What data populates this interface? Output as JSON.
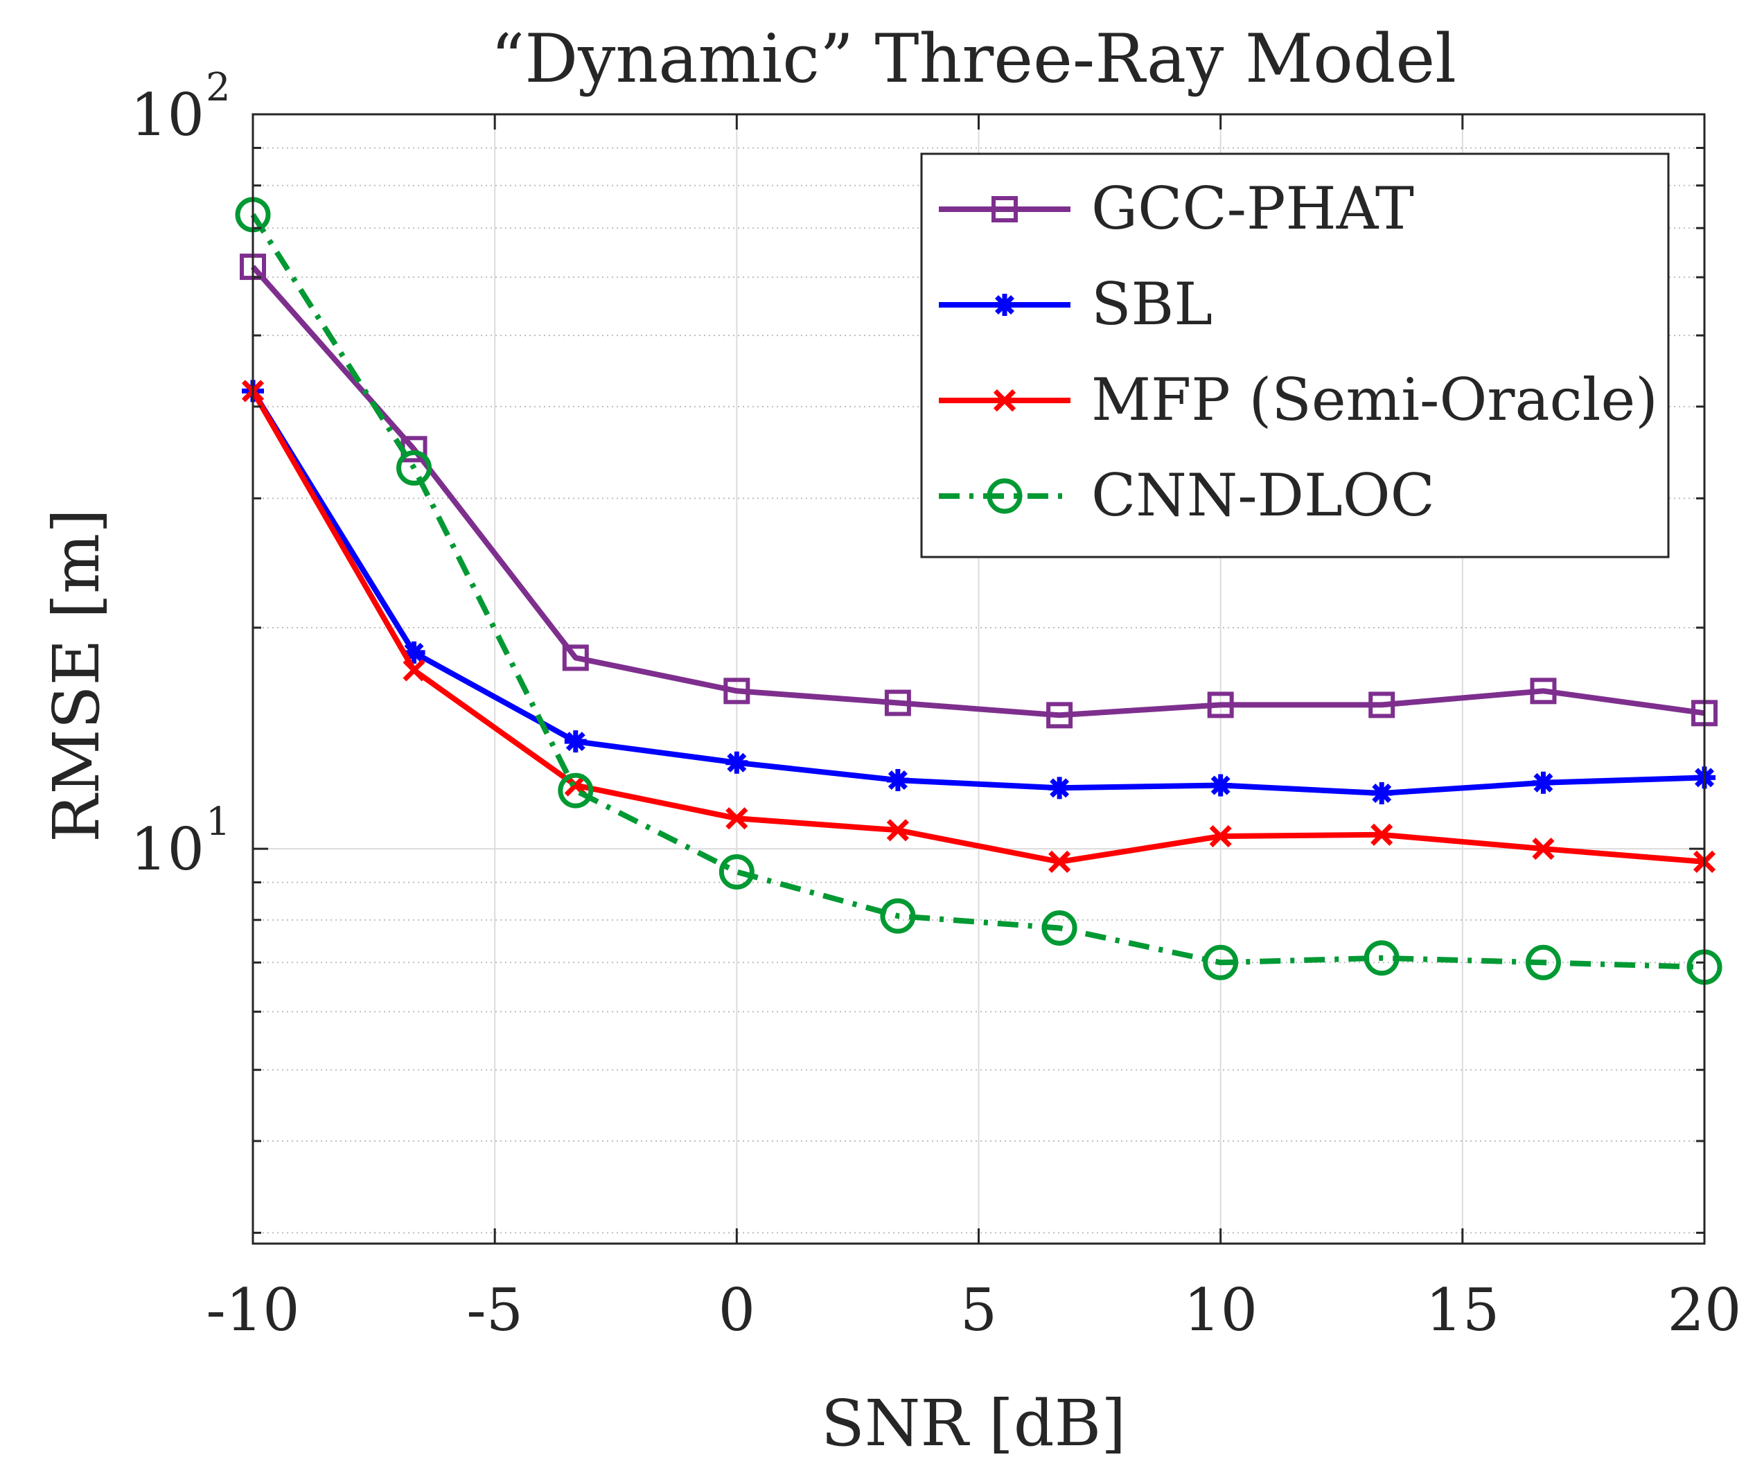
{
  "chart_data": {
    "type": "line",
    "title": "“Dynamic” Three-Ray Model",
    "xlabel": "SNR [dB]",
    "ylabel": "RMSE [m]",
    "xlim": [
      -10,
      20
    ],
    "ylim": [
      2.9,
      100
    ],
    "yscale": "log",
    "grid": true,
    "legend_position": "top-right",
    "x_ticks": [
      -10,
      -5,
      0,
      5,
      10,
      15,
      20
    ],
    "x_tick_labels": [
      "-10",
      "-5",
      "0",
      "5",
      "10",
      "15",
      "20"
    ],
    "y_ticks": [
      {
        "value": 10,
        "base": "10",
        "exponent": "1"
      },
      {
        "value": 100,
        "base": "10",
        "exponent": "2"
      }
    ],
    "x": [
      -10,
      -6.67,
      -3.33,
      0,
      3.33,
      6.67,
      10,
      13.33,
      16.67,
      20
    ],
    "series": [
      {
        "name": "GCC-PHAT",
        "color": "#7E2F8E",
        "marker": "square",
        "line_style": "solid",
        "values": [
          62.0,
          35.0,
          18.2,
          16.4,
          15.8,
          15.2,
          15.7,
          15.7,
          16.4,
          15.3
        ]
      },
      {
        "name": "SBL",
        "color": "#0000FF",
        "marker": "asterisk",
        "line_style": "solid",
        "values": [
          42.0,
          18.5,
          14.0,
          13.1,
          12.4,
          12.1,
          12.2,
          11.9,
          12.3,
          12.5
        ]
      },
      {
        "name": "MFP (Semi-Oracle)",
        "color": "#FF0000",
        "marker": "x",
        "line_style": "solid",
        "values": [
          42.0,
          17.5,
          12.2,
          11.0,
          10.6,
          9.6,
          10.4,
          10.45,
          10.0,
          9.6
        ]
      },
      {
        "name": "CNN-DLOC",
        "color": "#009933",
        "marker": "circle",
        "line_style": "dashdot",
        "values": [
          73.0,
          33.0,
          12.0,
          9.3,
          8.1,
          7.8,
          7.0,
          7.1,
          7.0,
          6.9
        ]
      }
    ]
  }
}
